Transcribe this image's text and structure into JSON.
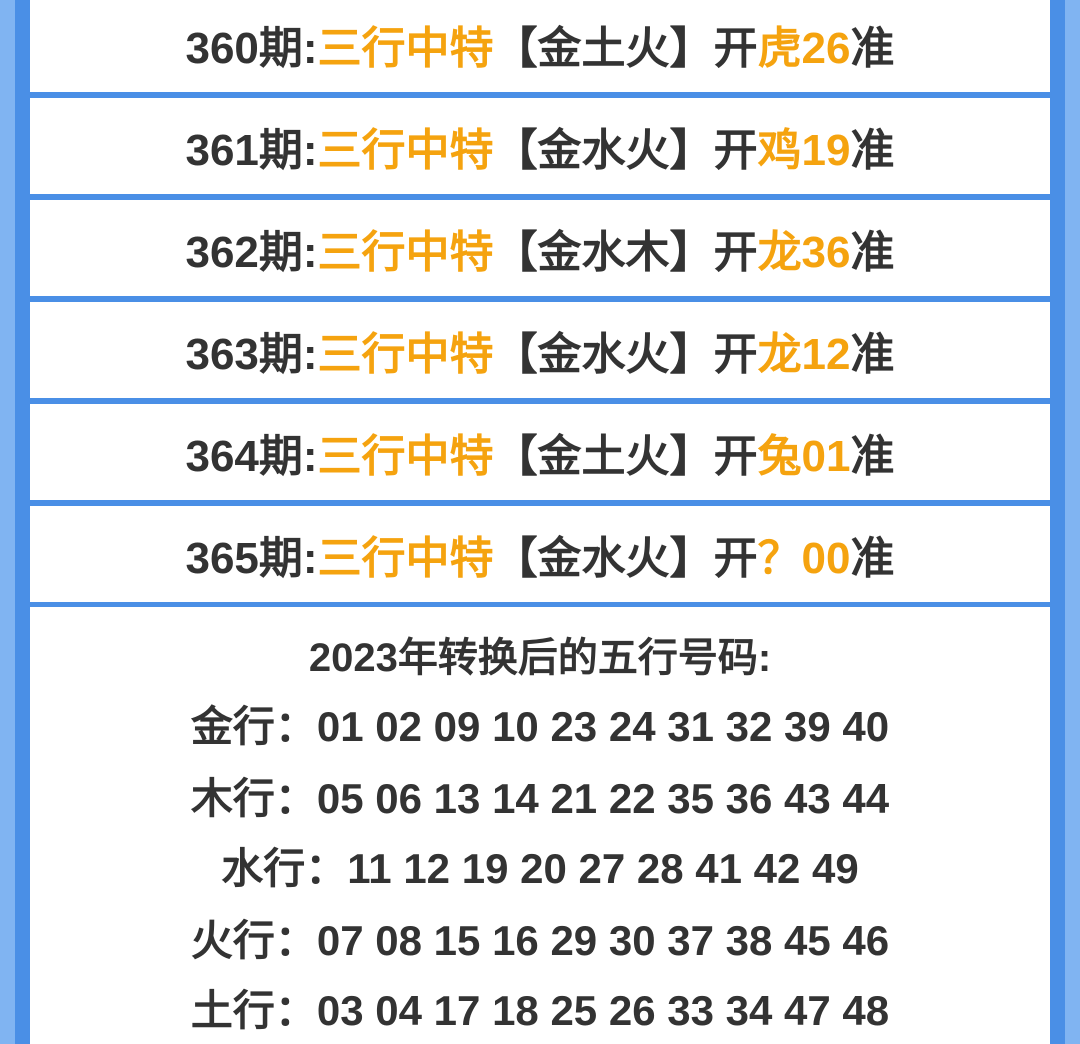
{
  "rows": [
    {
      "period": "360期:",
      "title": "三行中特",
      "elements": "【金土火】",
      "open": "开",
      "result": "虎26",
      "end": "准"
    },
    {
      "period": "361期:",
      "title": "三行中特",
      "elements": "【金水火】",
      "open": "开",
      "result": "鸡19",
      "end": "准"
    },
    {
      "period": "362期:",
      "title": "三行中特",
      "elements": "【金水木】",
      "open": "开",
      "result": "龙36",
      "end": "准"
    },
    {
      "period": "363期:",
      "title": "三行中特",
      "elements": "【金水火】",
      "open": "开",
      "result": "龙12",
      "end": "准"
    },
    {
      "period": "364期:",
      "title": "三行中特",
      "elements": "【金土火】",
      "open": "开",
      "result": "兔01",
      "end": "准"
    },
    {
      "period": "365期:",
      "title": "三行中特",
      "elements": "【金水火】",
      "open": "开",
      "result": "？00",
      "end": "准"
    }
  ],
  "table": {
    "heading": "2023年转换后的五行号码:",
    "lines": [
      {
        "label": "金行：",
        "numbers": "01 02 09 10 23 24 31 32 39 40"
      },
      {
        "label": "木行：",
        "numbers": "05 06 13 14 21 22 35 36 43 44"
      },
      {
        "label": "水行：",
        "numbers": "11 12 19 20 27 28 41 42 49"
      },
      {
        "label": "火行：",
        "numbers": "07 08 15 16 29 30 37 38 45 46"
      },
      {
        "label": "土行：",
        "numbers": "03 04 17 18 25 26 33 34 47 48"
      }
    ]
  },
  "colors": {
    "accent": "#f5a30f",
    "text": "#333333",
    "border": "#4a8fe6",
    "outer": "#80b4f2"
  }
}
